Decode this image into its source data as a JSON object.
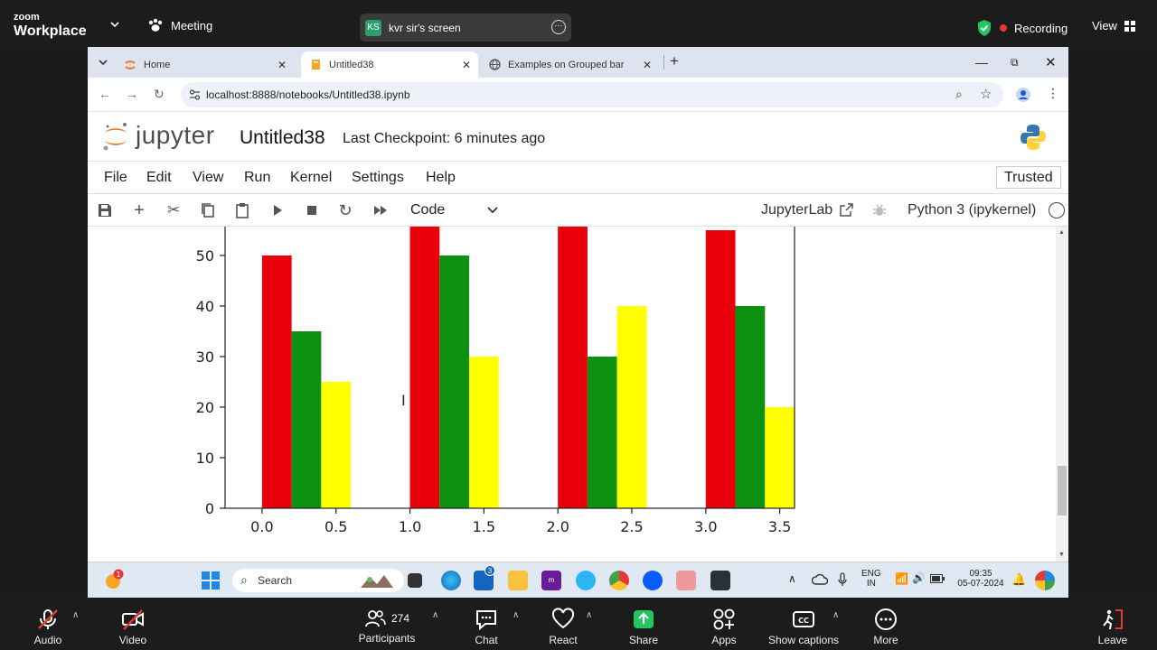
{
  "zoom_top": {
    "brand_small": "zoom",
    "brand_big": "Workplace",
    "meeting_label": "Meeting",
    "share_badge": "KS",
    "share_label": "kvr sir's screen",
    "recording_label": "Recording",
    "view_label": "View"
  },
  "browser": {
    "tabs": [
      {
        "label": "Home"
      },
      {
        "label": "Untitled38"
      },
      {
        "label": "Examples on Grouped bar"
      }
    ],
    "url": "localhost:8888/notebooks/Untitled38.ipynb"
  },
  "jupyter": {
    "wordmark": "jupyter",
    "notebook_name": "Untitled38",
    "checkpoint": "Last Checkpoint: 6 minutes ago",
    "menu": [
      "File",
      "Edit",
      "View",
      "Run",
      "Kernel",
      "Settings",
      "Help"
    ],
    "trusted": "Trusted",
    "cell_type": "Code",
    "jupyterlab_link": "JupyterLab",
    "kernel": "Python 3 (ipykernel)"
  },
  "chart_data": {
    "type": "bar",
    "x_ticks": [
      "0.0",
      "0.5",
      "1.0",
      "1.5",
      "2.0",
      "2.5",
      "3.0",
      "3.5"
    ],
    "y_ticks": [
      "0",
      "10",
      "20",
      "30",
      "40",
      "50"
    ],
    "xlim": [
      -0.25,
      3.6
    ],
    "ylim": [
      0,
      55.5
    ],
    "bar_width": 0.2,
    "groups": [
      0,
      1,
      2,
      3
    ],
    "series": [
      {
        "color": "#e8000b",
        "offset": 0.0,
        "values": [
          50,
          56,
          56,
          55
        ]
      },
      {
        "color": "#0d9110",
        "offset": 0.2,
        "values": [
          35,
          50,
          30,
          40
        ]
      },
      {
        "color": "#ffff00",
        "offset": 0.4,
        "values": [
          25,
          30,
          40,
          20
        ]
      }
    ]
  },
  "taskbar": {
    "search_placeholder": "Search",
    "notification_count": "1",
    "store_badge": "3",
    "lang_top": "ENG",
    "lang_bottom": "IN",
    "time": "09:35",
    "date": "05-07-2024"
  },
  "zoom_bottom": {
    "audio": "Audio",
    "video": "Video",
    "participants": "Participants",
    "participants_count": "274",
    "chat": "Chat",
    "react": "React",
    "share": "Share",
    "apps": "Apps",
    "captions": "Show captions",
    "more": "More",
    "leave": "Leave"
  }
}
